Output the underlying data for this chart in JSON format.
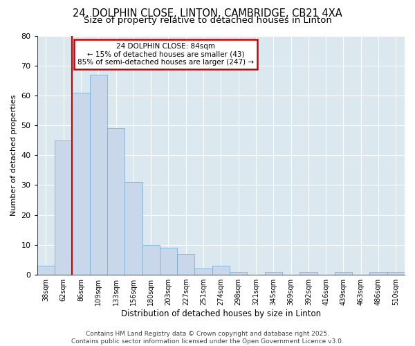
{
  "title1": "24, DOLPHIN CLOSE, LINTON, CAMBRIDGE, CB21 4XA",
  "title2": "Size of property relative to detached houses in Linton",
  "xlabel": "Distribution of detached houses by size in Linton",
  "ylabel": "Number of detached properties",
  "categories": [
    "38sqm",
    "62sqm",
    "86sqm",
    "109sqm",
    "133sqm",
    "156sqm",
    "180sqm",
    "203sqm",
    "227sqm",
    "251sqm",
    "274sqm",
    "298sqm",
    "321sqm",
    "345sqm",
    "369sqm",
    "392sqm",
    "416sqm",
    "439sqm",
    "463sqm",
    "486sqm",
    "510sqm"
  ],
  "values": [
    3,
    45,
    61,
    67,
    49,
    31,
    10,
    9,
    7,
    2,
    3,
    1,
    0,
    1,
    0,
    1,
    0,
    1,
    0,
    1,
    1
  ],
  "bar_color": "#c8d8ea",
  "bar_edge_color": "#7ab0d4",
  "vline_x": 2.0,
  "vline_label": "24 DOLPHIN CLOSE: 84sqm",
  "annotation_line1": "← 15% of detached houses are smaller (43)",
  "annotation_line2": "85% of semi-detached houses are larger (247) →",
  "annotation_box_color": "#ffffff",
  "annotation_box_edge": "#cc0000",
  "vline_color": "#cc0000",
  "ylim": [
    0,
    80
  ],
  "yticks": [
    0,
    10,
    20,
    30,
    40,
    50,
    60,
    70,
    80
  ],
  "fig_background": "#ffffff",
  "plot_background": "#dce8f0",
  "footer_text": "Contains HM Land Registry data © Crown copyright and database right 2025.\nContains public sector information licensed under the Open Government Licence v3.0.",
  "title1_fontsize": 10.5,
  "title2_fontsize": 9.5,
  "xlabel_fontsize": 8.5,
  "ylabel_fontsize": 8,
  "tick_fontsize": 7,
  "annotation_fontsize": 7.5,
  "footer_fontsize": 6.5
}
